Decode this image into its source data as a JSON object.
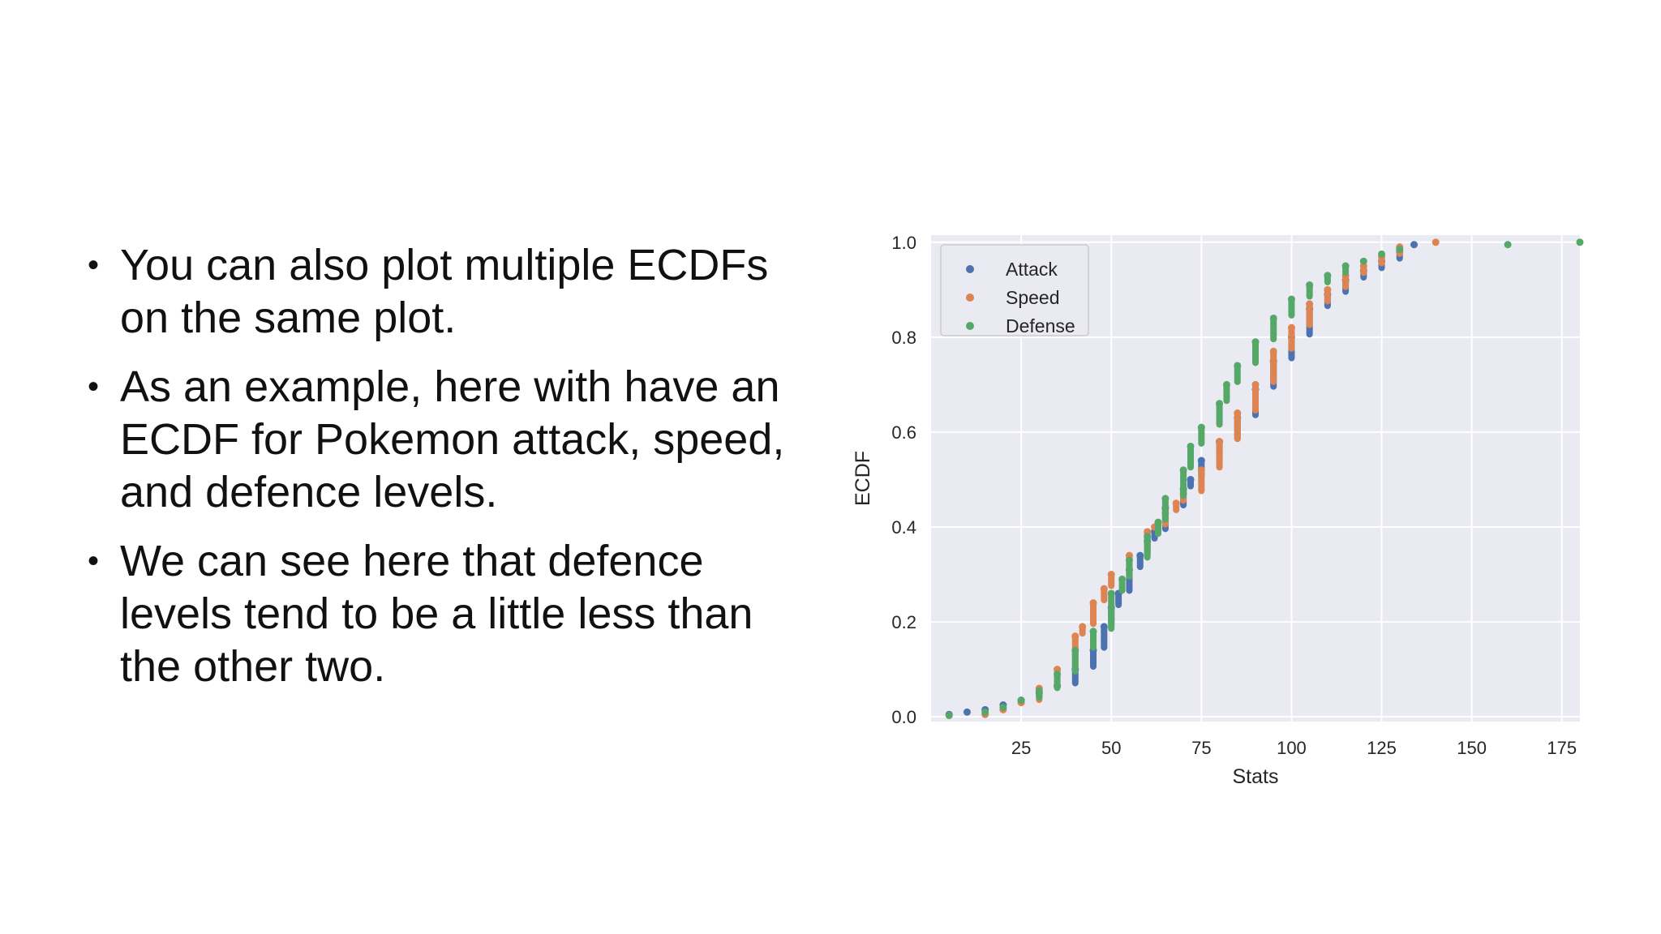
{
  "bullets": [
    "You can also plot multiple ECDFs on the same plot.",
    "As an example, here with have an ECDF for Pokemon attack, speed, and defence levels.",
    "We can see here that defence levels tend to be a little less than the other two."
  ],
  "chart_data": {
    "type": "scatter",
    "xlabel": "Stats",
    "ylabel": "ECDF",
    "xlim": [
      0,
      180
    ],
    "ylim": [
      -0.01,
      1.015
    ],
    "xticks": [
      25,
      50,
      75,
      100,
      125,
      150,
      175
    ],
    "yticks": [
      0.0,
      0.2,
      0.4,
      0.6,
      0.8,
      1.0
    ],
    "xtick_labels": [
      "25",
      "50",
      "75",
      "100",
      "125",
      "150",
      "175"
    ],
    "ytick_labels": [
      "0.0",
      "0.2",
      "0.4",
      "0.6",
      "0.8",
      "1.0"
    ],
    "grid": true,
    "legend_position": "upper-left",
    "series": [
      {
        "name": "Attack",
        "color": "#4c72b0",
        "x": [
          5,
          10,
          15,
          20,
          25,
          30,
          35,
          40,
          45,
          48,
          50,
          52,
          55,
          58,
          60,
          62,
          65,
          70,
          72,
          75,
          80,
          85,
          90,
          95,
          100,
          105,
          110,
          115,
          120,
          125,
          130,
          134
        ],
        "y": [
          0.005,
          0.01,
          0.015,
          0.025,
          0.035,
          0.05,
          0.065,
          0.1,
          0.14,
          0.19,
          0.23,
          0.26,
          0.31,
          0.34,
          0.37,
          0.39,
          0.44,
          0.48,
          0.5,
          0.54,
          0.58,
          0.63,
          0.69,
          0.75,
          0.8,
          0.86,
          0.89,
          0.92,
          0.94,
          0.96,
          0.98,
          0.995
        ]
      },
      {
        "name": "Speed",
        "color": "#dd8452",
        "x": [
          15,
          20,
          25,
          30,
          35,
          40,
          42,
          45,
          48,
          50,
          55,
          60,
          62,
          65,
          68,
          70,
          75,
          80,
          85,
          90,
          95,
          100,
          105,
          110,
          115,
          120,
          125,
          130,
          140
        ],
        "y": [
          0.005,
          0.015,
          0.03,
          0.06,
          0.1,
          0.17,
          0.19,
          0.24,
          0.27,
          0.3,
          0.34,
          0.39,
          0.4,
          0.43,
          0.45,
          0.47,
          0.52,
          0.58,
          0.64,
          0.7,
          0.77,
          0.82,
          0.87,
          0.9,
          0.93,
          0.95,
          0.97,
          0.99,
          1.0
        ]
      },
      {
        "name": "Defense",
        "color": "#55a868",
        "x": [
          5,
          15,
          20,
          25,
          30,
          35,
          40,
          45,
          50,
          53,
          55,
          60,
          63,
          65,
          70,
          72,
          75,
          80,
          82,
          85,
          90,
          95,
          100,
          105,
          110,
          115,
          120,
          125,
          130,
          160,
          180
        ],
        "y": [
          0.003,
          0.01,
          0.02,
          0.035,
          0.055,
          0.09,
          0.14,
          0.18,
          0.26,
          0.29,
          0.33,
          0.38,
          0.41,
          0.46,
          0.52,
          0.57,
          0.61,
          0.66,
          0.7,
          0.74,
          0.79,
          0.84,
          0.88,
          0.91,
          0.93,
          0.95,
          0.96,
          0.975,
          0.985,
          0.995,
          1.0
        ]
      }
    ]
  }
}
